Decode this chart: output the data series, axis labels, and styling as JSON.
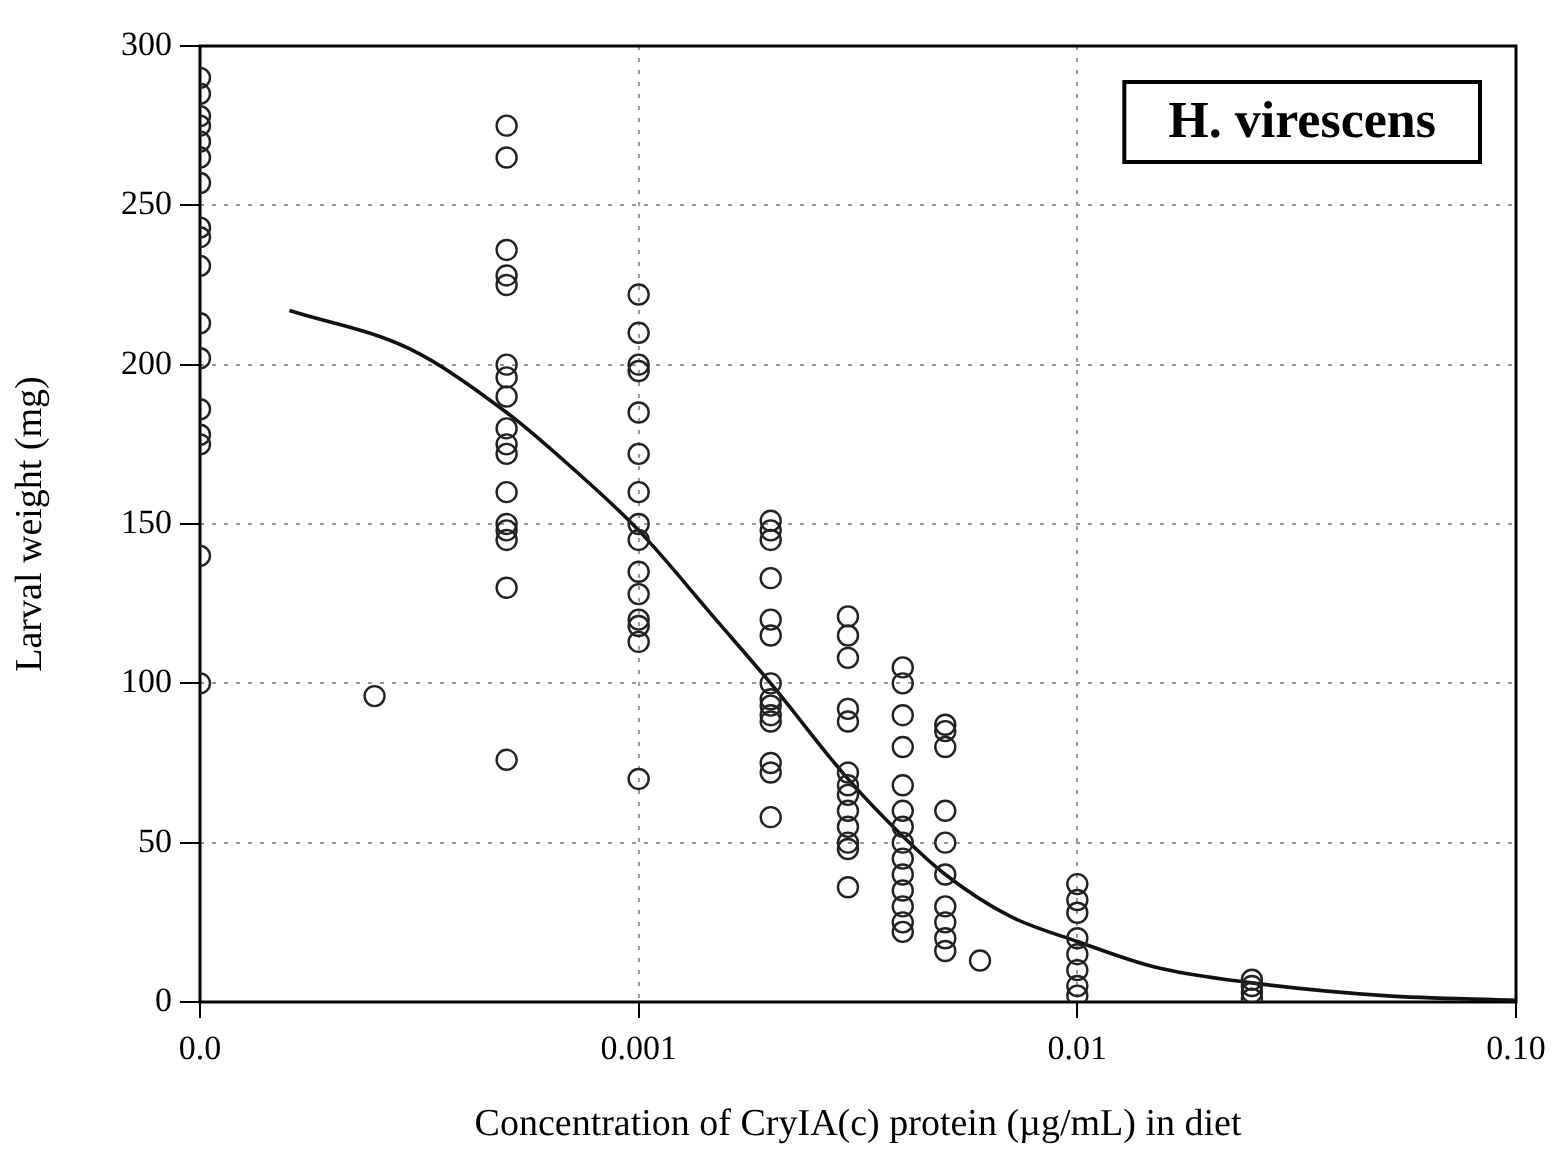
{
  "chart_data": {
    "type": "scatter",
    "title": "H. virescens",
    "xlabel": "Concentration of CryIA(c) protein (µg/mL) in diet",
    "ylabel": "Larval weight (mg)",
    "log": "x",
    "grid": true,
    "marker": "circle",
    "legend": false,
    "xlim": [
      0.0001,
      0.1
    ],
    "xticks": [
      {
        "value": 0.0001,
        "label": "0.0"
      },
      {
        "value": 0.001,
        "label": "0.001"
      },
      {
        "value": 0.01,
        "label": "0.01"
      },
      {
        "value": 0.1,
        "label": "0.10"
      }
    ],
    "ylim": [
      0,
      300
    ],
    "yticks": [
      0,
      50,
      100,
      150,
      200,
      250,
      300
    ],
    "series": [
      {
        "color": "#222222",
        "x": [
          0.0001,
          0.0001,
          0.0001,
          0.0001,
          0.0001,
          0.0001,
          0.0001,
          0.0001,
          0.0001,
          0.0001,
          0.0001,
          0.0001,
          0.0001,
          0.0001,
          0.0001,
          0.0001,
          0.0001,
          0.00025,
          0.0005,
          0.0005,
          0.0005,
          0.0005,
          0.0005,
          0.0005,
          0.0005,
          0.0005,
          0.0005,
          0.0005,
          0.0005,
          0.0005,
          0.0005,
          0.0005,
          0.0005,
          0.0005,
          0.0005,
          0.001,
          0.001,
          0.001,
          0.001,
          0.001,
          0.001,
          0.001,
          0.001,
          0.001,
          0.001,
          0.001,
          0.001,
          0.001,
          0.001,
          0.001,
          0.002,
          0.002,
          0.002,
          0.002,
          0.002,
          0.002,
          0.002,
          0.002,
          0.002,
          0.002,
          0.002,
          0.002,
          0.002,
          0.002,
          0.003,
          0.003,
          0.003,
          0.003,
          0.003,
          0.003,
          0.003,
          0.003,
          0.003,
          0.003,
          0.003,
          0.003,
          0.003,
          0.004,
          0.004,
          0.004,
          0.004,
          0.004,
          0.004,
          0.004,
          0.004,
          0.004,
          0.004,
          0.004,
          0.004,
          0.004,
          0.004,
          0.005,
          0.005,
          0.005,
          0.005,
          0.005,
          0.005,
          0.005,
          0.005,
          0.005,
          0.005,
          0.006,
          0.01,
          0.01,
          0.01,
          0.01,
          0.01,
          0.01,
          0.01,
          0.01,
          0.025,
          0.025,
          0.025,
          0.025
        ],
        "values": [
          290,
          285,
          278,
          275,
          270,
          265,
          257,
          243,
          240,
          231,
          213,
          202,
          186,
          178,
          175,
          140,
          100,
          96,
          275,
          265,
          236,
          228,
          225,
          200,
          196,
          190,
          180,
          175,
          172,
          160,
          150,
          148,
          145,
          130,
          76,
          222,
          210,
          200,
          198,
          185,
          172,
          160,
          150,
          145,
          135,
          128,
          120,
          118,
          113,
          70,
          151,
          148,
          145,
          133,
          120,
          115,
          100,
          95,
          93,
          90,
          88,
          75,
          72,
          58,
          121,
          115,
          108,
          92,
          88,
          72,
          68,
          65,
          60,
          55,
          50,
          48,
          36,
          105,
          100,
          90,
          80,
          68,
          60,
          55,
          50,
          45,
          40,
          35,
          30,
          25,
          22,
          87,
          85,
          80,
          60,
          50,
          40,
          30,
          25,
          20,
          16,
          13,
          37,
          32,
          28,
          20,
          15,
          10,
          5,
          2,
          7,
          5,
          3,
          1
        ]
      },
      {
        "type": "line",
        "color": "#111111",
        "marker": "none",
        "x": [
          0.00016,
          0.0003,
          0.0005,
          0.0007,
          0.001,
          0.0015,
          0.002,
          0.003,
          0.004,
          0.005,
          0.007,
          0.01,
          0.015,
          0.025,
          0.05,
          0.1
        ],
        "values": [
          217,
          205,
          185,
          168,
          148,
          120,
          100,
          70,
          52,
          40,
          27,
          19,
          11,
          6,
          2,
          0.5
        ]
      }
    ]
  }
}
